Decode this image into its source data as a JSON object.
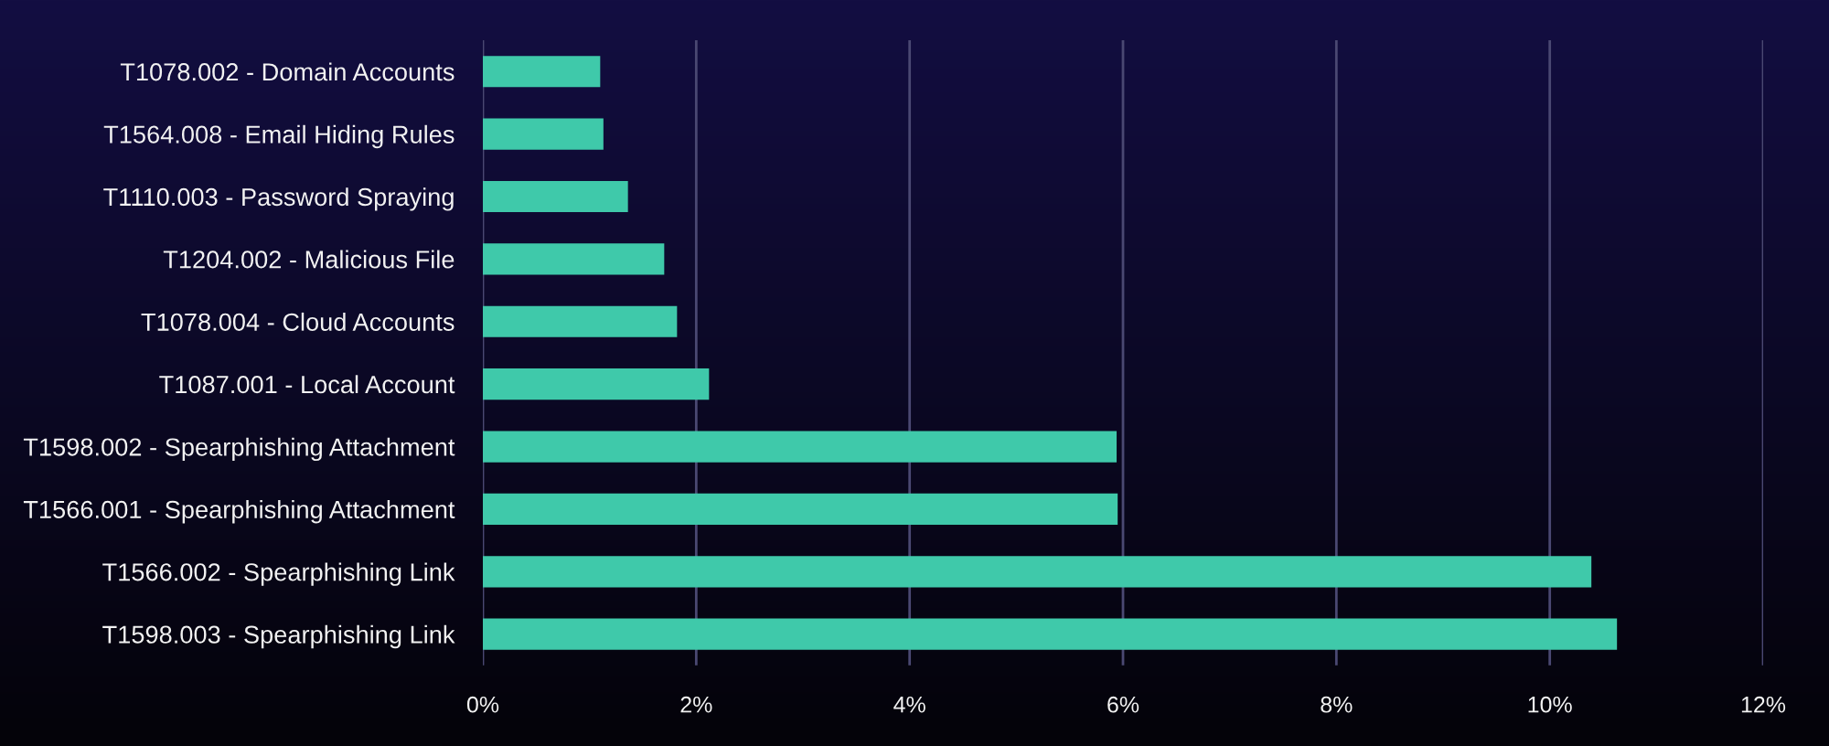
{
  "chart_data": {
    "type": "bar",
    "orientation": "horizontal",
    "categories": [
      "T1078.002 - Domain Accounts",
      "T1564.008 - Email Hiding Rules",
      "T1110.003 - Password Spraying",
      "T1204.002 - Malicious File",
      "T1078.004 - Cloud Accounts",
      "T1087.001 - Local Account",
      "T1598.002 - Spearphishing Attachment",
      "T1566.001 - Spearphishing Attachment",
      "T1566.002 - Spearphishing Link",
      "T1598.003 - Spearphishing Link"
    ],
    "values": [
      1.1,
      1.13,
      1.36,
      1.7,
      1.82,
      2.12,
      5.94,
      5.95,
      10.39,
      10.63
    ],
    "color": "#3fc9aa",
    "xlim": [
      0,
      12
    ],
    "xticks": [
      {
        "value": 0,
        "label": "0%"
      },
      {
        "value": 2,
        "label": "2%"
      },
      {
        "value": 4,
        "label": "4%"
      },
      {
        "value": 6,
        "label": "6%"
      },
      {
        "value": 8,
        "label": "8%"
      },
      {
        "value": 10,
        "label": "10%"
      },
      {
        "value": 12,
        "label": "12%"
      }
    ],
    "grid": "x"
  }
}
